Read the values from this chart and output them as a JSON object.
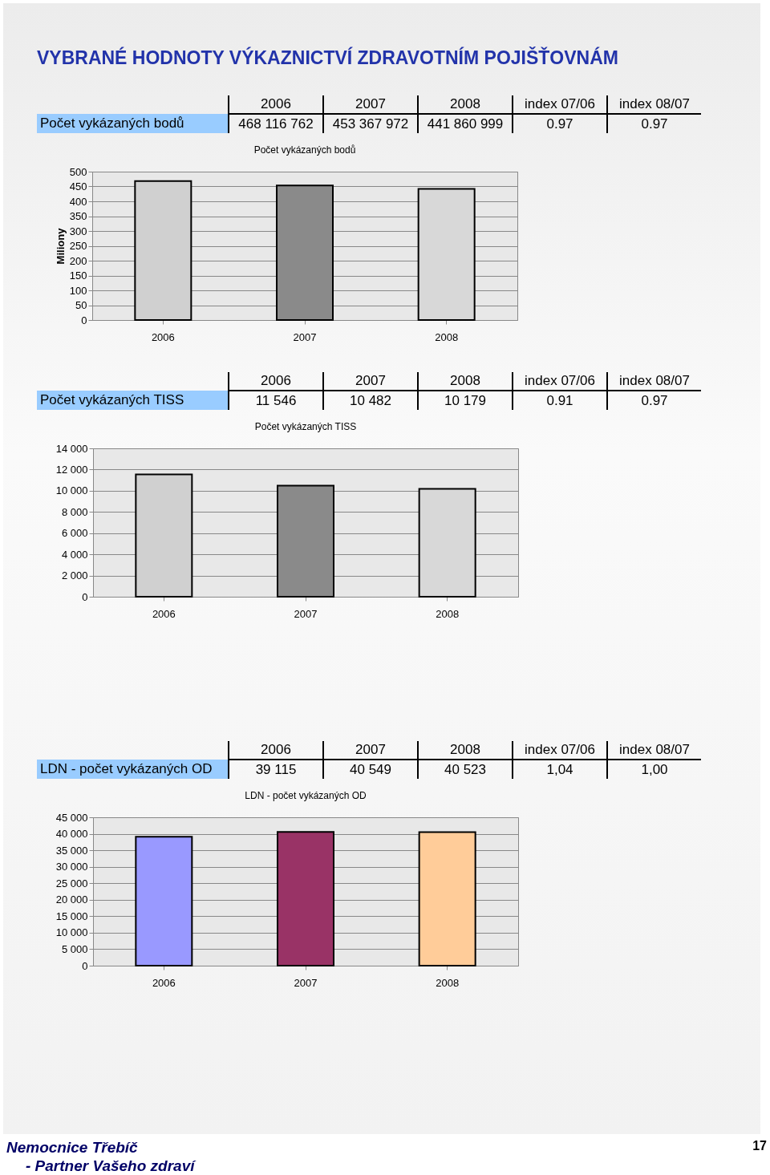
{
  "chart_data": [
    {
      "type": "bar",
      "title": "Počet vykázaných bodů",
      "ylabel": "Miliony",
      "categories": [
        "2006",
        "2007",
        "2008"
      ],
      "values": [
        468.1,
        453.4,
        441.9
      ],
      "colors": [
        "#d0d0d0",
        "#8a8a8a",
        "#d8d8d8"
      ],
      "ylim": [
        0,
        500
      ],
      "yticks": [
        0,
        50,
        100,
        150,
        200,
        250,
        300,
        350,
        400,
        450,
        500
      ],
      "grid": "y",
      "annotations": [
        "468 116 762",
        "453 367 972",
        "441 860 999",
        "index 07/06",
        "index 08/07",
        "0.97",
        "0.97",
        "VYBRANÉ HODNOTY VÝKAZNICTVÍ ZDRAVOTNÍM POJIŠŤOVNÁM"
      ]
    },
    {
      "type": "bar",
      "title": "Počet vykázaných TISS",
      "categories": [
        "2006",
        "2007",
        "2008"
      ],
      "values": [
        11550,
        10480,
        10180
      ],
      "colors": [
        "#d0d0d0",
        "#8a8a8a",
        "#d8d8d8"
      ],
      "ylim": [
        0,
        14000
      ],
      "yticks": [
        0,
        {
          "value": 2000,
          "label": "2 000"
        },
        {
          "value": 4000,
          "label": "4 000"
        },
        {
          "value": 6000,
          "label": "6 000"
        },
        {
          "value": 8000,
          "label": "8 000"
        },
        {
          "value": 10000,
          "label": "10 000"
        },
        {
          "value": 12000,
          "label": "12 000"
        },
        {
          "value": 14000,
          "label": "14 000"
        }
      ],
      "grid": "y",
      "annotations": [
        "11 546",
        "10 482",
        "10 179",
        "index 07/06",
        "index 08/07",
        "0.91",
        "0.97"
      ]
    },
    {
      "type": "bar",
      "title": "LDN - počet vykázaných OD",
      "categories": [
        "2006",
        "2007",
        "2008"
      ],
      "values": [
        39100,
        40550,
        40520
      ],
      "colors": [
        "#9999ff",
        "#993366",
        "#ffcc99"
      ],
      "ylim": [
        0,
        45000
      ],
      "yticks": [
        0,
        {
          "value": 5000,
          "label": "5 000"
        },
        {
          "value": 10000,
          "label": "10 000"
        },
        {
          "value": 15000,
          "label": "15 000"
        },
        {
          "value": 20000,
          "label": "20 000"
        },
        {
          "value": 25000,
          "label": "25 000"
        },
        {
          "value": 30000,
          "label": "30 000"
        },
        {
          "value": 35000,
          "label": "35 000"
        },
        {
          "value": 40000,
          "label": "40 000"
        },
        {
          "value": 45000,
          "label": "45 000"
        }
      ],
      "grid": "y",
      "annotations": [
        "39 115",
        "40 549",
        "40 523",
        "index 07/06",
        "index 08/07",
        "1,04",
        "1,00",
        "Nemocnice Třebíč",
        "- Partner Vašeho zdraví",
        "17"
      ]
    }
  ]
}
